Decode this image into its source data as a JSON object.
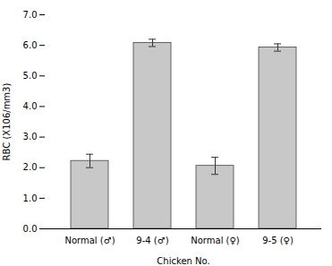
{
  "chart_data": {
    "type": "bar",
    "categories": [
      "Normal (♂)",
      "9-4 (♂)",
      "Normal (♀)",
      "9-5 (♀)"
    ],
    "values": [
      2.22,
      6.08,
      2.06,
      5.93
    ],
    "errors": [
      0.22,
      0.12,
      0.28,
      0.12
    ],
    "color": "#c8c8c8",
    "xlabel": "Chicken No.",
    "ylabel": "RBC (X106/mm3)",
    "ylim": [
      0,
      7
    ],
    "yticks": [
      0,
      1,
      2,
      3,
      4,
      5,
      6,
      7
    ],
    "grid": false
  }
}
